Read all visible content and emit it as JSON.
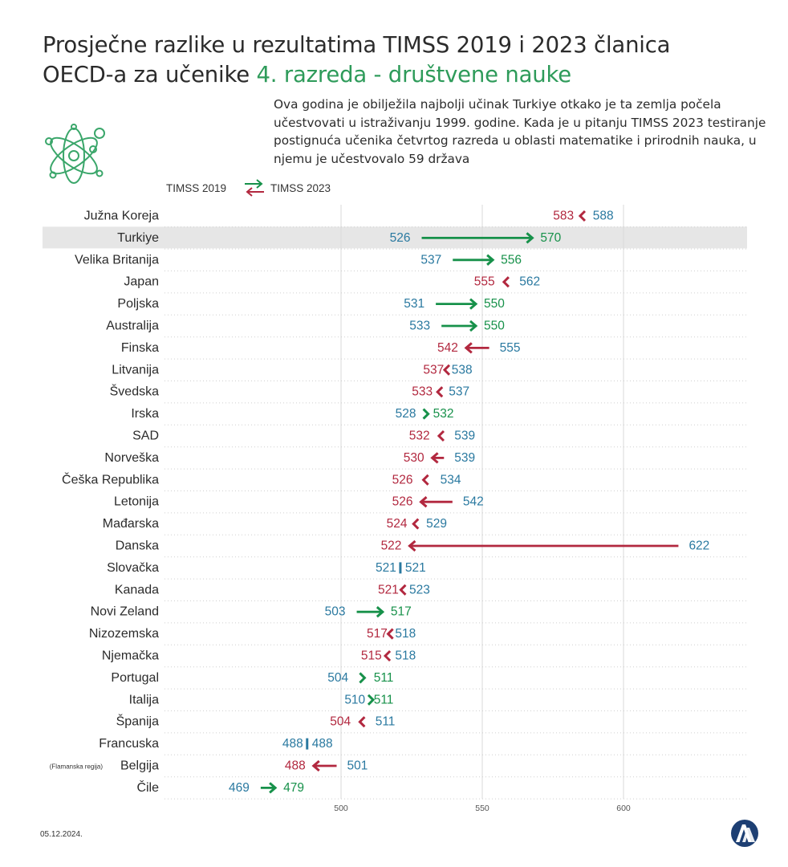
{
  "title": {
    "line1": "Prosječne razlike u rezultatima TIMSS 2019 i 2023 članica",
    "line2_prefix": "OECD-a  za učenike",
    "line2_highlight": "4. razreda - društvene nauke"
  },
  "description": "Ova godina je obilježila najbolji učinak Turkiye otkako je ta zemlja počela učestvovati u istraživanju 1999. godine. Kada je u pitanju TIMSS 2023 testiranje postignuća učenika četvrtog razreda u oblasti matematike i prirodnih nauka, u njemu je učestvovalo 59 država",
  "legend": {
    "from": "TIMSS 2019",
    "to": "TIMSS 2023"
  },
  "date": "05.12.2024.",
  "colors": {
    "increase": "#17914a",
    "decrease": "#b2283f",
    "value_2019_blue": "#2a79a0",
    "highlight_row": "#e6e6e6",
    "title_accent": "#2e9b5a"
  },
  "icons": {
    "top_left": "atom-icon",
    "bottom_right": "aa-logo-icon"
  },
  "chart_data": {
    "type": "dumbbell",
    "xlim": [
      400,
      630
    ],
    "xticks": [
      500,
      550,
      600
    ],
    "highlight": "Turkiye",
    "notes": {
      "Belgija": "(Flamanska regija)"
    },
    "series": [
      {
        "name": "TIMSS 2019"
      },
      {
        "name": "TIMSS 2023"
      }
    ],
    "countries": [
      {
        "name": "Južna Koreja",
        "y2019": 588,
        "y2023": 583
      },
      {
        "name": "Turkiye",
        "y2019": 526,
        "y2023": 570
      },
      {
        "name": "Velika Britanija",
        "y2019": 537,
        "y2023": 556
      },
      {
        "name": "Japan",
        "y2019": 562,
        "y2023": 555
      },
      {
        "name": "Poljska",
        "y2019": 531,
        "y2023": 550
      },
      {
        "name": "Australija",
        "y2019": 533,
        "y2023": 550
      },
      {
        "name": "Finska",
        "y2019": 555,
        "y2023": 542
      },
      {
        "name": "Litvanija",
        "y2019": 538,
        "y2023": 537
      },
      {
        "name": "Švedska",
        "y2019": 537,
        "y2023": 533
      },
      {
        "name": "Irska",
        "y2019": 528,
        "y2023": 532
      },
      {
        "name": "SAD",
        "y2019": 539,
        "y2023": 532
      },
      {
        "name": "Norveška",
        "y2019": 539,
        "y2023": 530
      },
      {
        "name": "Češka Republika",
        "y2019": 534,
        "y2023": 526
      },
      {
        "name": "Letonija",
        "y2019": 542,
        "y2023": 526
      },
      {
        "name": "Mađarska",
        "y2019": 529,
        "y2023": 524
      },
      {
        "name": "Danska",
        "y2019": 622,
        "y2023": 522
      },
      {
        "name": "Slovačka",
        "y2019": 521,
        "y2023": 521
      },
      {
        "name": "Kanada",
        "y2019": 523,
        "y2023": 521
      },
      {
        "name": "Novi Zeland",
        "y2019": 503,
        "y2023": 517
      },
      {
        "name": "Nizozemska",
        "y2019": 518,
        "y2023": 517
      },
      {
        "name": "Njemačka",
        "y2019": 518,
        "y2023": 515
      },
      {
        "name": "Portugal",
        "y2019": 504,
        "y2023": 511
      },
      {
        "name": "Italija",
        "y2019": 510,
        "y2023": 511
      },
      {
        "name": "Španija",
        "y2019": 511,
        "y2023": 504
      },
      {
        "name": "Francuska",
        "y2019": 488,
        "y2023": 488
      },
      {
        "name": "Belgija",
        "y2019": 501,
        "y2023": 488
      },
      {
        "name": "Čile",
        "y2019": 469,
        "y2023": 479
      }
    ]
  }
}
